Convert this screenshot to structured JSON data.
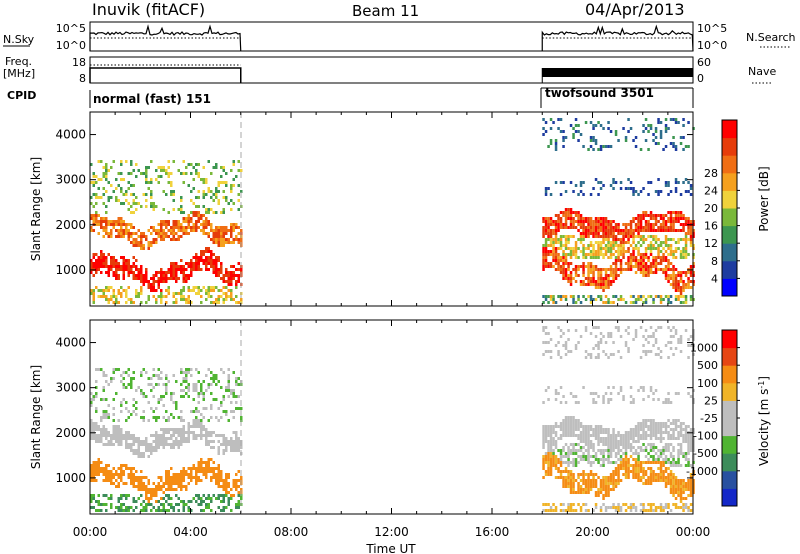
{
  "header": {
    "station": "Inuvik (fitACF)",
    "beam": "Beam 11",
    "date": "04/Apr/2013"
  },
  "left_labels": {
    "nsky": "N.Sky",
    "freq_line1": "Freq.",
    "freq_line2": "[MHz]",
    "cpid": "CPID"
  },
  "right_labels": {
    "nsearch": "N.Search",
    "nave": "Nave"
  },
  "noise_panel": {
    "left_ticks": [
      "10^5",
      "10^0"
    ],
    "right_ticks": [
      "10^5",
      "10^0"
    ]
  },
  "freq_panel": {
    "left_ticks": [
      "18",
      "8"
    ],
    "right_ticks": [
      "60",
      "0"
    ]
  },
  "cpid_panel": {
    "segments": [
      {
        "label": "normal (fast) 151",
        "start_h": 0,
        "end_h": 6
      },
      {
        "label": "twofsound 3501",
        "start_h": 18,
        "end_h": 24
      }
    ]
  },
  "colors": {
    "power": [
      "#0000ff",
      "#1e3ca0",
      "#2e6e8c",
      "#3c9650",
      "#7ab83a",
      "#f0d23c",
      "#f5a01e",
      "#f06e14",
      "#e63c0a",
      "#ff0000"
    ],
    "velocity": [
      "#ff0000",
      "#e64614",
      "#f58c14",
      "#f0b428",
      "#bebebe",
      "#bebebe",
      "#50b432",
      "#3c8c5a",
      "#2850a0",
      "#1428c8"
    ]
  },
  "chart_data": [
    {
      "type": "heatmap",
      "title": "",
      "ylabel": "Slant Range [km]",
      "xlabel": "",
      "ylim": [
        200,
        4500
      ],
      "yticks": [
        "1000",
        "2000",
        "3000",
        "4000"
      ],
      "colorbar": {
        "label": "Power [dB]",
        "ticks": [
          "4",
          "8",
          "12",
          "16",
          "20",
          "24",
          "28"
        ],
        "range": [
          0,
          30
        ]
      },
      "observation_windows_h": [
        [
          0,
          6
        ],
        [
          18,
          24
        ]
      ]
    },
    {
      "type": "heatmap",
      "title": "",
      "ylabel": "Slant Range [km]",
      "xlabel": "Time UT",
      "xlim": [
        0,
        24
      ],
      "xticks": [
        "00:00",
        "04:00",
        "08:00",
        "12:00",
        "16:00",
        "20:00",
        "00:00"
      ],
      "ylim": [
        200,
        4500
      ],
      "yticks": [
        "1000",
        "2000",
        "3000",
        "4000"
      ],
      "colorbar": {
        "label": "Velocity",
        "unit_base": "[m s",
        "unit_sup": "-1",
        "unit_end": "]",
        "ticks": [
          "1000",
          "500",
          "100",
          "25",
          "-25",
          "-100",
          "-500",
          "-1000"
        ]
      },
      "observation_windows_h": [
        [
          0,
          6
        ],
        [
          18,
          24
        ]
      ]
    }
  ]
}
